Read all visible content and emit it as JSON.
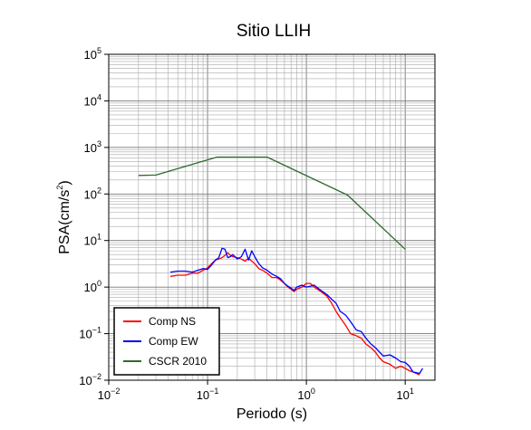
{
  "chart_data": {
    "type": "line",
    "title": "Sitio LLIH",
    "xlabel": "Periodo (s)",
    "ylabel_main": "PSA(cm/s",
    "ylabel_sup": "2",
    "ylabel_tail": ")",
    "xscale": "log",
    "yscale": "log",
    "xlim": [
      0.01,
      20
    ],
    "ylim": [
      0.01,
      100000
    ],
    "grid": true,
    "legend_position": "bottom-left",
    "x_ticks": [
      {
        "base": "10",
        "exp": "−2",
        "value": 0.01
      },
      {
        "base": "10",
        "exp": "−1",
        "value": 0.1
      },
      {
        "base": "10",
        "exp": "0",
        "value": 1
      },
      {
        "base": "10",
        "exp": "1",
        "value": 10
      }
    ],
    "y_ticks": [
      {
        "base": "10",
        "exp": "−2",
        "value": 0.01
      },
      {
        "base": "10",
        "exp": "−1",
        "value": 0.1
      },
      {
        "base": "10",
        "exp": "0",
        "value": 1
      },
      {
        "base": "10",
        "exp": "1",
        "value": 10
      },
      {
        "base": "10",
        "exp": "2",
        "value": 100
      },
      {
        "base": "10",
        "exp": "3",
        "value": 1000
      },
      {
        "base": "10",
        "exp": "4",
        "value": 10000
      },
      {
        "base": "10",
        "exp": "5",
        "value": 100000
      }
    ],
    "series": [
      {
        "name": "Comp NS",
        "color": "#ff0000",
        "x": [
          0.042,
          0.05,
          0.06,
          0.07,
          0.08,
          0.09,
          0.1,
          0.11,
          0.12,
          0.13,
          0.14,
          0.15,
          0.16,
          0.17,
          0.18,
          0.2,
          0.22,
          0.24,
          0.26,
          0.28,
          0.3,
          0.33,
          0.36,
          0.4,
          0.45,
          0.5,
          0.55,
          0.6,
          0.65,
          0.7,
          0.75,
          0.8,
          0.9,
          1.0,
          1.1,
          1.2,
          1.4,
          1.6,
          1.8,
          2.0,
          2.2,
          2.5,
          2.8,
          3.2,
          3.6,
          4.0,
          4.5,
          5.0,
          5.5,
          6.0,
          7.0,
          8.0,
          9.0,
          10.0,
          11.0,
          12.0,
          14.0
        ],
        "values": [
          1.7,
          1.8,
          1.8,
          2.0,
          2.0,
          2.3,
          2.6,
          3.2,
          3.8,
          4.0,
          4.3,
          4.8,
          5.5,
          4.8,
          4.5,
          4.3,
          4.0,
          3.6,
          4.2,
          3.6,
          3.2,
          2.5,
          2.3,
          2.0,
          1.6,
          1.6,
          1.4,
          1.2,
          1.0,
          0.9,
          0.8,
          0.9,
          1.0,
          1.2,
          1.2,
          1.0,
          0.8,
          0.65,
          0.45,
          0.3,
          0.22,
          0.15,
          0.1,
          0.09,
          0.08,
          0.06,
          0.05,
          0.04,
          0.03,
          0.025,
          0.022,
          0.018,
          0.02,
          0.018,
          0.016,
          0.015,
          0.013
        ]
      },
      {
        "name": "Comp EW",
        "color": "#0000ff",
        "x": [
          0.042,
          0.05,
          0.06,
          0.07,
          0.08,
          0.09,
          0.1,
          0.11,
          0.12,
          0.13,
          0.14,
          0.15,
          0.16,
          0.17,
          0.18,
          0.2,
          0.22,
          0.24,
          0.26,
          0.28,
          0.3,
          0.33,
          0.36,
          0.4,
          0.45,
          0.5,
          0.55,
          0.6,
          0.65,
          0.7,
          0.75,
          0.8,
          0.9,
          1.0,
          1.1,
          1.2,
          1.4,
          1.6,
          1.8,
          2.0,
          2.2,
          2.5,
          2.8,
          3.2,
          3.6,
          4.0,
          4.5,
          5.0,
          5.5,
          6.0,
          7.0,
          8.0,
          9.0,
          10.0,
          11.0,
          12.0,
          14.0,
          15.0
        ],
        "values": [
          2.1,
          2.2,
          2.2,
          2.1,
          2.3,
          2.5,
          2.4,
          3.0,
          3.8,
          4.3,
          6.8,
          6.5,
          4.3,
          4.5,
          5.0,
          4.0,
          4.5,
          6.5,
          3.8,
          6.0,
          4.5,
          3.2,
          2.6,
          2.3,
          1.9,
          1.7,
          1.5,
          1.2,
          1.05,
          0.95,
          0.85,
          1.0,
          1.1,
          1.0,
          1.05,
          1.1,
          0.85,
          0.7,
          0.55,
          0.45,
          0.3,
          0.25,
          0.18,
          0.12,
          0.11,
          0.08,
          0.06,
          0.05,
          0.04,
          0.033,
          0.035,
          0.03,
          0.025,
          0.024,
          0.02,
          0.015,
          0.014,
          0.018
        ]
      },
      {
        "name": "CSCR 2010",
        "color": "#2e6b2e",
        "x": [
          0.02,
          0.03,
          0.125,
          0.4,
          2.6,
          10.0
        ],
        "values": [
          250,
          255,
          620,
          620,
          95,
          6.5
        ]
      }
    ]
  }
}
